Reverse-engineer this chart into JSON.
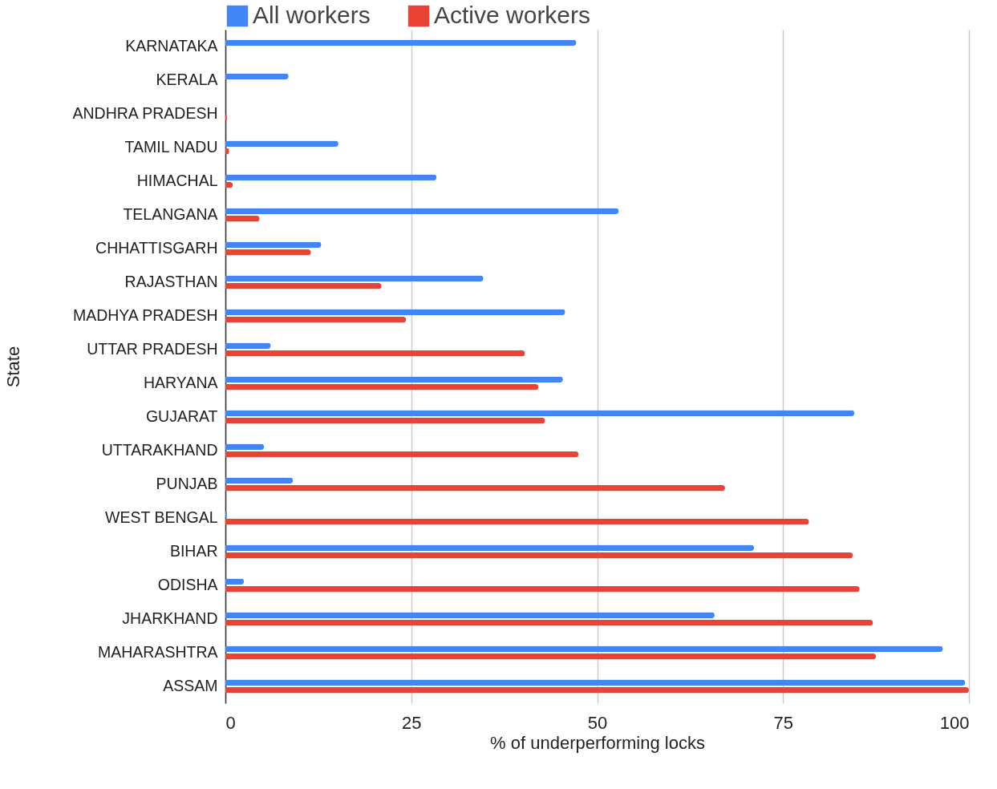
{
  "chart_data": {
    "type": "bar",
    "orientation": "horizontal",
    "xlabel": "% of underperforming locks",
    "ylabel": "State",
    "categories": [
      "KARNATAKA",
      "KERALA",
      "ANDHRA PRADESH",
      "TAMIL NADU",
      "HIMACHAL",
      "TELANGANA",
      "CHHATTISGARH",
      "RAJASTHAN",
      "MADHYA PRADESH",
      "UTTAR PRADESH",
      "HARYANA",
      "GUJARAT",
      "UTTARAKHAND",
      "PUNJAB",
      "WEST BENGAL",
      "BIHAR",
      "ODISHA",
      "JHARKHAND",
      "MAHARASHTRA",
      "ASSAM"
    ],
    "series": [
      {
        "name": "All workers",
        "color": "#4285f4",
        "values": [
          47.2,
          8.5,
          0,
          15.2,
          28.4,
          52.9,
          12.9,
          34.7,
          45.7,
          6.1,
          45.4,
          84.6,
          5.2,
          9.1,
          0.2,
          71.1,
          2.5,
          65.8,
          96.5,
          99.5
        ]
      },
      {
        "name": "Active workers",
        "color": "#ea4335",
        "values": [
          0,
          0,
          0.2,
          0.5,
          1.0,
          4.6,
          11.5,
          21.0,
          24.3,
          40.3,
          42.1,
          43.0,
          47.5,
          67.2,
          78.5,
          84.4,
          85.3,
          87.1,
          87.5,
          100
        ]
      }
    ],
    "xlim": [
      0,
      100
    ],
    "xticks": [
      0,
      25,
      50,
      75,
      100
    ],
    "grid": "x",
    "legend": "top"
  }
}
